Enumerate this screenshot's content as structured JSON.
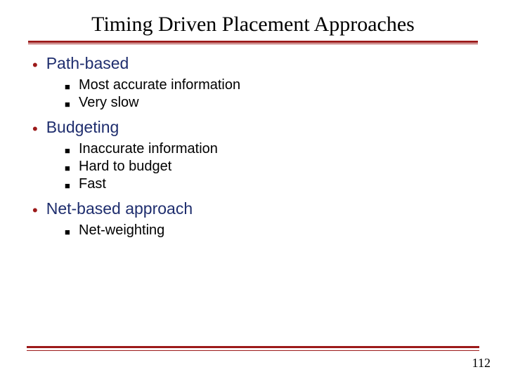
{
  "title": "Timing Driven Placement Approaches",
  "sections": [
    {
      "heading": "Path-based",
      "items": [
        "Most accurate information",
        "Very slow"
      ]
    },
    {
      "heading": "Budgeting",
      "items": [
        "Inaccurate information",
        "Hard to budget",
        "Fast"
      ]
    },
    {
      "heading": "Net-based approach",
      "items": [
        "Net-weighting"
      ]
    }
  ],
  "page_number": "112",
  "colors": {
    "accent": "#9c1a1a",
    "heading_text": "#1f2e6e",
    "body_text": "#000000",
    "background": "#ffffff"
  },
  "typography": {
    "title_font": "Times New Roman",
    "body_font": "Verdana",
    "title_size_pt": 30,
    "level1_size_pt": 23,
    "level2_size_pt": 20
  }
}
